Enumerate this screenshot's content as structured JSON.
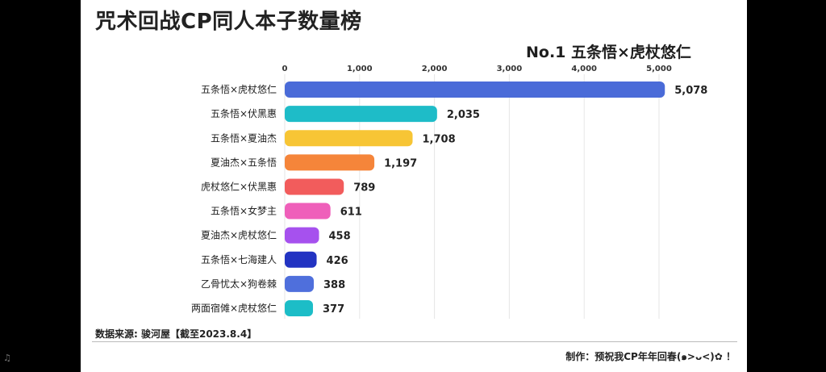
{
  "chart_data": {
    "type": "bar",
    "orientation": "horizontal",
    "title": "咒术回战CP同人本子数量榜",
    "leader_label": "No.1 五条悟×虎杖悠仁",
    "categories": [
      "五条悟×虎杖悠仁",
      "五条悟×伏黑惠",
      "五条悟×夏油杰",
      "夏油杰×五条悟",
      "虎杖悠仁×伏黑惠",
      "五条悟×女梦主",
      "夏油杰×虎杖悠仁",
      "五条悟×七海建人",
      "乙骨忧太×狗卷棘",
      "两面宿傩×虎杖悠仁"
    ],
    "values": [
      5078,
      2035,
      1708,
      1197,
      789,
      611,
      458,
      426,
      388,
      377
    ],
    "value_labels": [
      "5,078",
      "2,035",
      "1,708",
      "1,197",
      "789",
      "611",
      "458",
      "426",
      "388",
      "377"
    ],
    "colors": [
      "#4a6bd8",
      "#1ebcc8",
      "#f7c535",
      "#f5853a",
      "#f25c5c",
      "#ef5fba",
      "#a651ee",
      "#2233c2",
      "#4f6fdc",
      "#1cbdc7"
    ],
    "ticks": [
      0,
      1000,
      2000,
      3000,
      4000,
      5000
    ],
    "tick_labels": [
      "0",
      "1,000",
      "2,000",
      "3,000",
      "4,000",
      "5,000"
    ],
    "xlim": [
      0,
      5000
    ],
    "grid": "vertical",
    "xlabel": "",
    "ylabel": ""
  },
  "footer": {
    "source": "数据来源: 骏河屋【截至2023.8.4】",
    "credit": "制作：预祝我CP年年回春(๑>ᴗ<)✿ ！"
  },
  "left_glyph": "♫"
}
